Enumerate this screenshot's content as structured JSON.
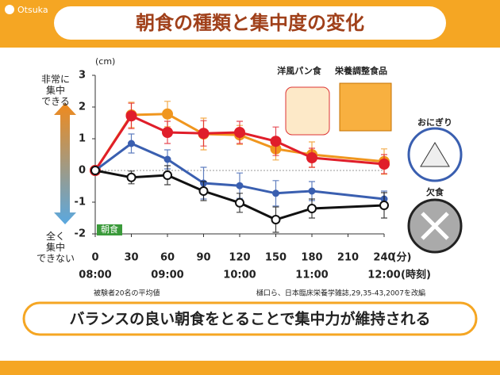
{
  "logo": "Otsuka",
  "chart_data": {
    "type": "line",
    "title": "朝食の種類と集中度の変化",
    "y_unit": "(cm)",
    "x_unit": "(分)",
    "time_unit": "(時刻)",
    "top_label": "非常に集中できる",
    "bottom_label": "全く集中できない",
    "start_label": "朝食",
    "x": [
      0,
      30,
      60,
      90,
      120,
      150,
      180,
      240
    ],
    "xlim": [
      0,
      240
    ],
    "xticks": [
      0,
      30,
      60,
      90,
      120,
      150,
      180,
      210,
      240
    ],
    "time_ticks": [
      {
        "value": 0,
        "label": "08:00"
      },
      {
        "value": 60,
        "label": "09:00"
      },
      {
        "value": 120,
        "label": "10:00"
      },
      {
        "value": 180,
        "label": "11:00"
      },
      {
        "value": 240,
        "label": "12:00"
      }
    ],
    "ylim": [
      -2,
      3
    ],
    "yticks": [
      -2,
      -1,
      0,
      1,
      2,
      3
    ],
    "series": [
      {
        "name": "洋風パン食",
        "color": "#f0961e",
        "values": [
          0,
          1.75,
          1.78,
          1.15,
          1.12,
          0.68,
          0.5,
          0.28
        ],
        "errors": [
          0,
          0.4,
          0.4,
          0.5,
          0.3,
          0.35,
          0.4,
          0.4
        ]
      },
      {
        "name": "栄養調整食品",
        "color": "#e01e2a",
        "values": [
          0,
          1.72,
          1.2,
          1.17,
          1.2,
          0.92,
          0.4,
          0.2
        ],
        "errors": [
          0,
          0.4,
          0.35,
          0.4,
          0.35,
          0.45,
          0.3,
          0.3
        ]
      },
      {
        "name": "おにぎり",
        "color": "#3a5fb0",
        "values": [
          0,
          0.85,
          0.35,
          -0.4,
          -0.48,
          -0.72,
          -0.65,
          -0.9
        ],
        "errors": [
          0,
          0.3,
          0.3,
          0.5,
          0.4,
          0.4,
          0.3,
          0.25
        ]
      },
      {
        "name": "欠食",
        "color": "#111111",
        "values": [
          0,
          -0.22,
          -0.15,
          -0.65,
          -1.02,
          -1.55,
          -1.2,
          -1.1
        ],
        "errors": [
          0,
          0.2,
          0.3,
          0.3,
          0.3,
          0.4,
          0.3,
          0.4
        ]
      }
    ],
    "note_left": "被験者20名の平均値",
    "note_right": "樋口ら、日本臨床栄養学雑誌,29,35-43,2007を改編",
    "conclusion": "バランスの良い朝食をとることで集中力が維持される"
  }
}
